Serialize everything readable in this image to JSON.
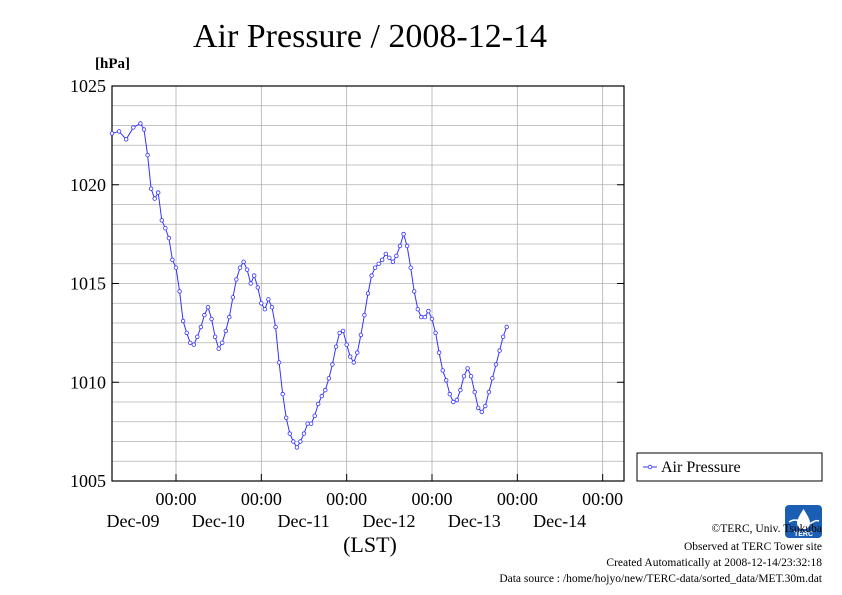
{
  "chart_data": {
    "type": "line",
    "title": "Air Pressure / 2008-12-14",
    "ylabel": "[hPa]",
    "xlabel": "(LST)",
    "ylim": [
      1005,
      1025
    ],
    "y_ticks": [
      1005,
      1010,
      1015,
      1020,
      1025
    ],
    "x_unit": "hours since Dec-08 00:00",
    "xlim": [
      6,
      150
    ],
    "x_ticks": [
      {
        "hour": 24,
        "time": "00:00",
        "day": "Dec-09"
      },
      {
        "hour": 48,
        "time": "00:00",
        "day": "Dec-10"
      },
      {
        "hour": 72,
        "time": "00:00",
        "day": "Dec-11"
      },
      {
        "hour": 96,
        "time": "00:00",
        "day": "Dec-12"
      },
      {
        "hour": 120,
        "time": "00:00",
        "day": "Dec-13"
      },
      {
        "hour": 144,
        "time": "00:00",
        "day": "Dec-14"
      }
    ],
    "grid": true,
    "legend_position": "right",
    "series": [
      {
        "name": "Air Pressure",
        "color": "#3333ff",
        "points": [
          [
            6,
            1022.6
          ],
          [
            8,
            1022.7
          ],
          [
            10,
            1022.3
          ],
          [
            12,
            1022.9
          ],
          [
            14,
            1023.1
          ],
          [
            15,
            1022.8
          ],
          [
            16,
            1021.5
          ],
          [
            17,
            1019.8
          ],
          [
            18,
            1019.3
          ],
          [
            19,
            1019.6
          ],
          [
            20,
            1018.2
          ],
          [
            21,
            1017.8
          ],
          [
            22,
            1017.3
          ],
          [
            23,
            1016.2
          ],
          [
            24,
            1015.8
          ],
          [
            25,
            1014.6
          ],
          [
            26,
            1013.1
          ],
          [
            27,
            1012.5
          ],
          [
            28,
            1012.0
          ],
          [
            29,
            1011.9
          ],
          [
            30,
            1012.3
          ],
          [
            31,
            1012.8
          ],
          [
            32,
            1013.4
          ],
          [
            33,
            1013.8
          ],
          [
            34,
            1013.2
          ],
          [
            35,
            1012.3
          ],
          [
            36,
            1011.7
          ],
          [
            37,
            1012.0
          ],
          [
            38,
            1012.6
          ],
          [
            39,
            1013.3
          ],
          [
            40,
            1014.3
          ],
          [
            41,
            1015.2
          ],
          [
            42,
            1015.8
          ],
          [
            43,
            1016.1
          ],
          [
            44,
            1015.7
          ],
          [
            45,
            1015.0
          ],
          [
            46,
            1015.4
          ],
          [
            47,
            1014.8
          ],
          [
            48,
            1014.0
          ],
          [
            49,
            1013.7
          ],
          [
            50,
            1014.2
          ],
          [
            51,
            1013.8
          ],
          [
            52,
            1012.8
          ],
          [
            53,
            1011.0
          ],
          [
            54,
            1009.4
          ],
          [
            55,
            1008.2
          ],
          [
            56,
            1007.4
          ],
          [
            57,
            1007.0
          ],
          [
            58,
            1006.7
          ],
          [
            59,
            1007.0
          ],
          [
            60,
            1007.4
          ],
          [
            61,
            1007.9
          ],
          [
            62,
            1007.9
          ],
          [
            63,
            1008.3
          ],
          [
            64,
            1008.9
          ],
          [
            65,
            1009.3
          ],
          [
            66,
            1009.6
          ],
          [
            67,
            1010.2
          ],
          [
            68,
            1010.9
          ],
          [
            69,
            1011.8
          ],
          [
            70,
            1012.5
          ],
          [
            71,
            1012.6
          ],
          [
            72,
            1011.9
          ],
          [
            73,
            1011.3
          ],
          [
            74,
            1011.0
          ],
          [
            75,
            1011.5
          ],
          [
            76,
            1012.4
          ],
          [
            77,
            1013.4
          ],
          [
            78,
            1014.5
          ],
          [
            79,
            1015.4
          ],
          [
            80,
            1015.8
          ],
          [
            81,
            1016.0
          ],
          [
            82,
            1016.2
          ],
          [
            83,
            1016.5
          ],
          [
            84,
            1016.3
          ],
          [
            85,
            1016.1
          ],
          [
            86,
            1016.4
          ],
          [
            87,
            1016.9
          ],
          [
            88,
            1017.5
          ],
          [
            89,
            1016.9
          ],
          [
            90,
            1015.8
          ],
          [
            91,
            1014.6
          ],
          [
            92,
            1013.7
          ],
          [
            93,
            1013.3
          ],
          [
            94,
            1013.3
          ],
          [
            95,
            1013.6
          ],
          [
            96,
            1013.2
          ],
          [
            97,
            1012.5
          ],
          [
            98,
            1011.5
          ],
          [
            99,
            1010.6
          ],
          [
            100,
            1010.1
          ],
          [
            101,
            1009.4
          ],
          [
            102,
            1009.0
          ],
          [
            103,
            1009.1
          ],
          [
            104,
            1009.6
          ],
          [
            105,
            1010.3
          ],
          [
            106,
            1010.7
          ],
          [
            107,
            1010.3
          ],
          [
            108,
            1009.5
          ],
          [
            109,
            1008.7
          ],
          [
            110,
            1008.5
          ],
          [
            111,
            1008.8
          ],
          [
            112,
            1009.5
          ],
          [
            113,
            1010.2
          ],
          [
            114,
            1010.9
          ],
          [
            115,
            1011.6
          ],
          [
            116,
            1012.3
          ],
          [
            117,
            1012.8
          ]
        ]
      }
    ]
  },
  "legend": {
    "label": "Air Pressure"
  },
  "footer": {
    "line1": "©TERC, Univ. Tsukuba",
    "line2": "Observed at TERC Tower site",
    "line3": "Created Automatically at 2008-12-14/23:32:18",
    "line4": "Data source : /home/hojyo/new/TERC-data/sorted_data/MET.30m.dat"
  },
  "logo": {
    "text": "TERC",
    "icon": "terc-logo-icon",
    "color": "#1a5fb4"
  }
}
